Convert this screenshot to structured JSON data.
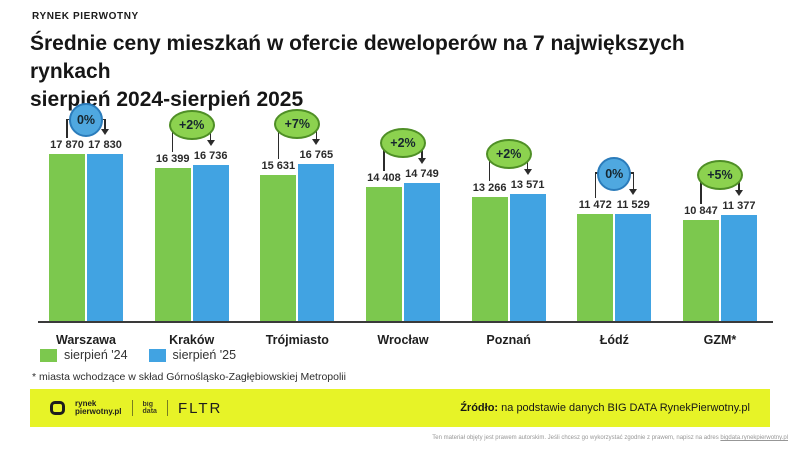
{
  "header": {
    "brand": "RYNEK PIERWOTNY",
    "title_line1": "Średnie ceny mieszkań w ofercie deweloperów na 7 największych rynkach",
    "title_line2": "sierpień 2024-sierpień 2025"
  },
  "chart_data": {
    "type": "bar",
    "title": "Średnie ceny mieszkań w ofercie deweloperów na 7 największych rynkach sierpień 2024-sierpień 2025",
    "categories": [
      "Warszawa",
      "Kraków",
      "Trójmiasto",
      "Wrocław",
      "Poznań",
      "Łódź",
      "GZM*"
    ],
    "series": [
      {
        "name": "sierpień '24",
        "color": "#7CC84E",
        "values": [
          17870,
          16399,
          15631,
          14408,
          13266,
          11472,
          10847
        ],
        "labels": [
          "17 870",
          "16 399",
          "15 631",
          "14 408",
          "13 266",
          "11 472",
          "10 847"
        ]
      },
      {
        "name": "sierpień '25",
        "color": "#41A3E2",
        "values": [
          17830,
          16736,
          16765,
          14749,
          13571,
          11529,
          11377
        ],
        "labels": [
          "17 830",
          "16 736",
          "16 765",
          "14 749",
          "13 571",
          "11 529",
          "11 377"
        ]
      }
    ],
    "change_badges": [
      {
        "text": "0%",
        "style": "blue"
      },
      {
        "text": "+2%",
        "style": "green"
      },
      {
        "text": "+7%",
        "style": "green"
      },
      {
        "text": "+2%",
        "style": "green"
      },
      {
        "text": "+2%",
        "style": "green"
      },
      {
        "text": "0%",
        "style": "blue"
      },
      {
        "text": "+5%",
        "style": "green"
      }
    ],
    "ylim": [
      0,
      18000
    ],
    "grid": false,
    "legend_position": "bottom-left"
  },
  "footnote": "* miasta wchodzące w skład Górnośląsko-Zagłębiowskiej Metropolii",
  "footer": {
    "logo_primary_line1": "rynek",
    "logo_primary_line2": "pierwotny.pl",
    "logo_bigdata_line1": "big",
    "logo_bigdata_line2": "data",
    "logo_fltr": "FLTR",
    "source_label": "Źródło:",
    "source_text": " na podstawie danych BIG DATA RynekPierwotny.pl"
  },
  "disclaimer": {
    "text": "Ten materiał objęty jest prawem autorskim. Jeśli chcesz go wykorzystać zgodnie z prawem, napisz na adres ",
    "link": "bigdata.rynekpierwotny.pl"
  },
  "colors": {
    "bar_2024": "#7CC84E",
    "bar_2025": "#41A3E2",
    "badge_green_fill": "#8CD24F",
    "badge_green_border": "#4F8F26",
    "badge_blue_fill": "#4FA8E0",
    "badge_blue_border": "#2B7CBB",
    "badge_text": "#16262e",
    "connector": "#2b2b2b",
    "footer_background": "#E7F327",
    "axis": "#3a3a3a"
  }
}
